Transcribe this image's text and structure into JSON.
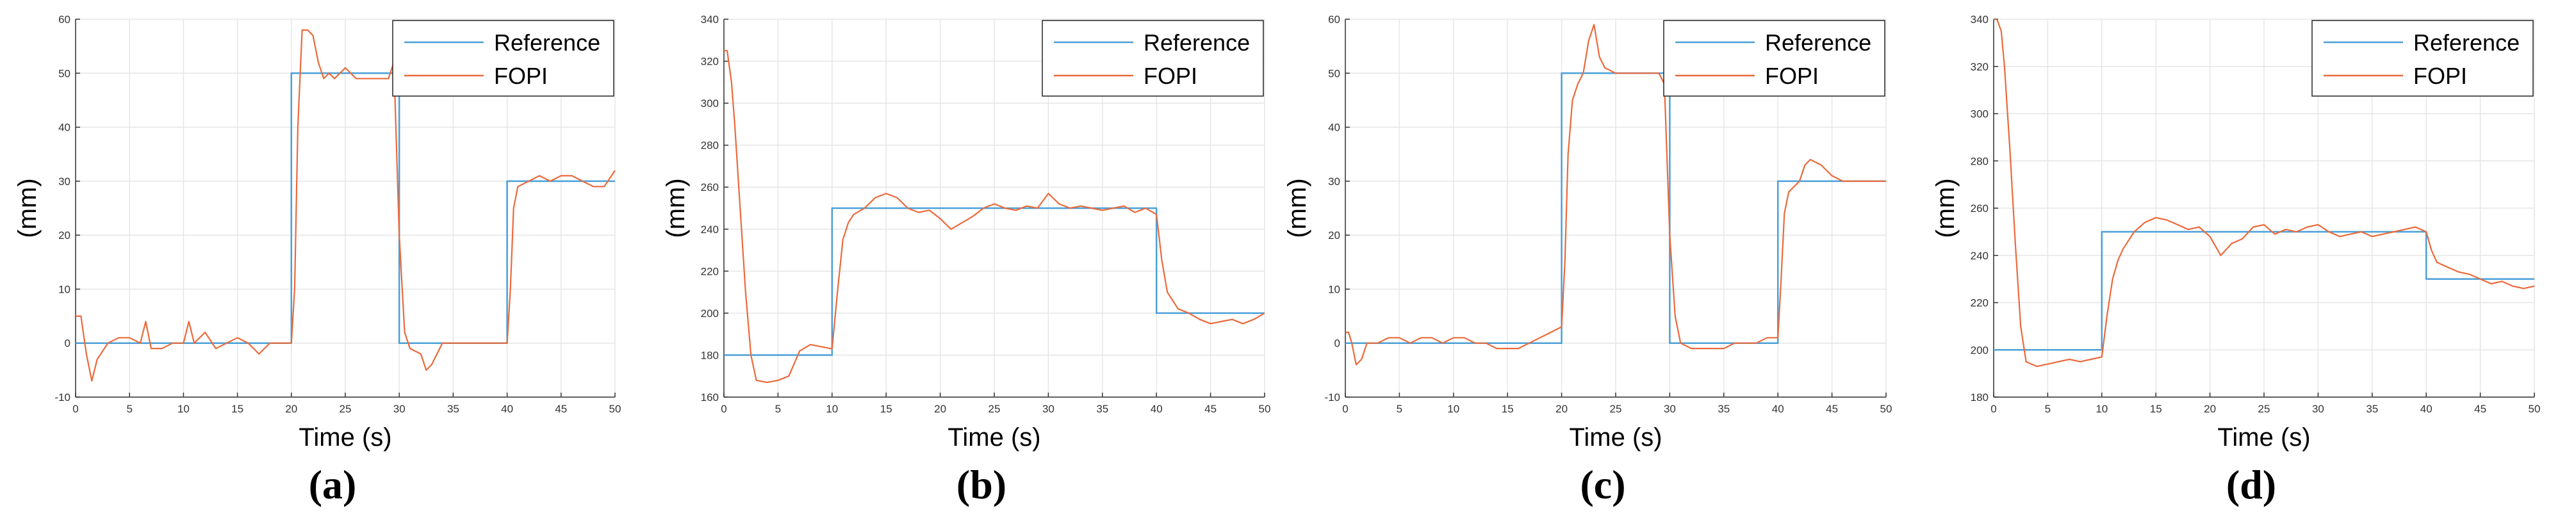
{
  "colors": {
    "reference": "#4a9fd8",
    "fopi": "#ea6a3c",
    "axis": "#333333",
    "grid": "#e6e6e6"
  },
  "chart_data": [
    {
      "type": "line",
      "panel_label": "(a)",
      "xlabel": "Time (s)",
      "ylabel": "(mm)",
      "xlim": [
        0,
        50
      ],
      "ylim": [
        -10,
        60
      ],
      "xticks": [
        "0",
        "5",
        "10",
        "15",
        "20",
        "25",
        "30",
        "35",
        "40",
        "45",
        "50"
      ],
      "yticks": [
        "-10",
        "0",
        "10",
        "20",
        "30",
        "40",
        "50",
        "60"
      ],
      "grid": true,
      "legend": "top-right",
      "series": [
        {
          "name": "Reference",
          "color": "#4a9fd8",
          "x": [
            0,
            20,
            20,
            30,
            30,
            40,
            40,
            50
          ],
          "y": [
            0,
            0,
            50,
            50,
            0,
            0,
            30,
            30
          ]
        },
        {
          "name": "FOPI",
          "color": "#ea6a3c",
          "x": [
            0,
            0.5,
            1,
            1.5,
            2,
            3,
            4,
            5,
            6,
            6.5,
            7,
            8,
            9,
            10,
            10.5,
            11,
            12,
            13,
            14,
            15,
            16,
            17,
            18,
            19,
            20,
            20.3,
            20.6,
            21,
            21.5,
            22,
            22.5,
            23,
            23.5,
            24,
            25,
            26,
            27,
            28,
            29,
            29.5,
            30,
            30.5,
            31,
            32,
            32.5,
            33,
            34,
            35,
            36,
            37,
            38,
            39,
            40,
            40.3,
            40.6,
            41,
            42,
            43,
            44,
            45,
            46,
            47,
            48,
            49,
            50
          ],
          "y": [
            5,
            5,
            -2,
            -7,
            -3,
            0,
            1,
            1,
            0,
            4,
            -1,
            -1,
            0,
            0,
            4,
            0,
            2,
            -1,
            0,
            1,
            0,
            -2,
            0,
            0,
            0,
            10,
            40,
            58,
            58,
            57,
            52,
            49,
            50,
            49,
            51,
            49,
            49,
            49,
            49,
            52,
            20,
            2,
            -1,
            -2,
            -5,
            -4,
            0,
            0,
            0,
            0,
            0,
            0,
            0,
            10,
            25,
            29,
            30,
            31,
            30,
            31,
            31,
            30,
            29,
            29,
            32
          ]
        }
      ]
    },
    {
      "type": "line",
      "panel_label": "(b)",
      "xlabel": "Time (s)",
      "ylabel": "(mm)",
      "xlim": [
        0,
        50
      ],
      "ylim": [
        160,
        340
      ],
      "xticks": [
        "0",
        "5",
        "10",
        "15",
        "20",
        "25",
        "30",
        "35",
        "40",
        "45",
        "50"
      ],
      "yticks": [
        "160",
        "180",
        "200",
        "220",
        "240",
        "260",
        "280",
        "300",
        "320",
        "340"
      ],
      "grid": true,
      "legend": "top-right",
      "series": [
        {
          "name": "Reference",
          "color": "#4a9fd8",
          "x": [
            0,
            10,
            10,
            40,
            40,
            50
          ],
          "y": [
            180,
            180,
            250,
            250,
            200,
            200
          ]
        },
        {
          "name": "FOPI",
          "color": "#ea6a3c",
          "x": [
            0,
            0.3,
            0.7,
            1,
            1.5,
            2,
            2.5,
            3,
            4,
            5,
            6,
            7,
            8,
            9,
            10,
            10.5,
            11,
            11.5,
            12,
            13,
            14,
            15,
            16,
            17,
            18,
            19,
            20,
            21,
            22,
            23,
            24,
            25,
            26,
            27,
            28,
            29,
            30,
            31,
            32,
            33,
            34,
            35,
            36,
            37,
            38,
            39,
            40,
            40.5,
            41,
            42,
            43,
            44,
            45,
            46,
            47,
            48,
            49,
            50
          ],
          "y": [
            325,
            325,
            310,
            290,
            250,
            210,
            180,
            168,
            167,
            168,
            170,
            182,
            185,
            184,
            183,
            210,
            235,
            243,
            247,
            250,
            255,
            257,
            255,
            250,
            248,
            249,
            245,
            240,
            243,
            246,
            250,
            252,
            250,
            249,
            251,
            250,
            257,
            252,
            250,
            251,
            250,
            249,
            250,
            251,
            248,
            250,
            247,
            225,
            210,
            202,
            200,
            197,
            195,
            196,
            197,
            195,
            197,
            200
          ]
        }
      ]
    },
    {
      "type": "line",
      "panel_label": "(c)",
      "xlabel": "Time (s)",
      "ylabel": "(mm)",
      "xlim": [
        0,
        50
      ],
      "ylim": [
        -10,
        60
      ],
      "xticks": [
        "0",
        "5",
        "10",
        "15",
        "20",
        "25",
        "30",
        "35",
        "40",
        "45",
        "50"
      ],
      "yticks": [
        "-10",
        "0",
        "10",
        "20",
        "30",
        "40",
        "50",
        "60"
      ],
      "grid": true,
      "legend": "top-right",
      "series": [
        {
          "name": "Reference",
          "color": "#4a9fd8",
          "x": [
            0,
            20,
            20,
            30,
            30,
            40,
            40,
            50
          ],
          "y": [
            0,
            0,
            50,
            50,
            0,
            0,
            30,
            30
          ]
        },
        {
          "name": "FOPI",
          "color": "#ea6a3c",
          "x": [
            0,
            0.3,
            0.6,
            1,
            1.5,
            2,
            3,
            4,
            5,
            6,
            7,
            8,
            9,
            10,
            11,
            12,
            13,
            14,
            15,
            16,
            17,
            18,
            19,
            20,
            20.3,
            20.6,
            21,
            21.5,
            22,
            22.5,
            23,
            23.5,
            24,
            25,
            26,
            27,
            28,
            29,
            29.5,
            30,
            30.5,
            31,
            32,
            33,
            34,
            35,
            36,
            37,
            38,
            39,
            40,
            40.3,
            40.6,
            41,
            42,
            42.5,
            43,
            44,
            45,
            46,
            47,
            48,
            49,
            50
          ],
          "y": [
            2,
            2,
            0,
            -4,
            -3,
            0,
            0,
            1,
            1,
            0,
            1,
            1,
            0,
            1,
            1,
            0,
            0,
            -1,
            -1,
            -1,
            0,
            1,
            2,
            3,
            15,
            35,
            45,
            48,
            50,
            56,
            59,
            53,
            51,
            50,
            50,
            50,
            50,
            50,
            48,
            20,
            5,
            0,
            -1,
            -1,
            -1,
            -1,
            0,
            0,
            0,
            1,
            1,
            12,
            24,
            28,
            30,
            33,
            34,
            33,
            31,
            30,
            30,
            30,
            30,
            30
          ]
        }
      ]
    },
    {
      "type": "line",
      "panel_label": "(d)",
      "xlabel": "Time (s)",
      "ylabel": "(mm)",
      "xlim": [
        0,
        50
      ],
      "ylim": [
        180,
        340
      ],
      "xticks": [
        "0",
        "5",
        "10",
        "15",
        "20",
        "25",
        "30",
        "35",
        "40",
        "45",
        "50"
      ],
      "yticks": [
        "180",
        "200",
        "220",
        "240",
        "260",
        "280",
        "300",
        "320",
        "340"
      ],
      "grid": true,
      "legend": "top-right",
      "series": [
        {
          "name": "Reference",
          "color": "#4a9fd8",
          "x": [
            0,
            10,
            10,
            40,
            40,
            50
          ],
          "y": [
            200,
            200,
            250,
            250,
            230,
            230
          ]
        },
        {
          "name": "FOPI",
          "color": "#ea6a3c",
          "x": [
            0,
            0.3,
            0.7,
            1,
            1.5,
            2,
            2.5,
            3,
            4,
            5,
            6,
            7,
            8,
            9,
            10,
            10.5,
            11,
            11.5,
            12,
            13,
            14,
            15,
            16,
            17,
            18,
            19,
            20,
            21,
            22,
            23,
            24,
            25,
            26,
            27,
            28,
            29,
            30,
            31,
            32,
            33,
            34,
            35,
            36,
            37,
            38,
            39,
            40,
            40.5,
            41,
            42,
            43,
            44,
            45,
            46,
            47,
            48,
            49,
            50
          ],
          "y": [
            340,
            340,
            335,
            320,
            285,
            245,
            210,
            195,
            193,
            194,
            195,
            196,
            195,
            196,
            197,
            215,
            230,
            238,
            243,
            250,
            254,
            256,
            255,
            253,
            251,
            252,
            248,
            240,
            245,
            247,
            252,
            253,
            249,
            251,
            250,
            252,
            253,
            250,
            248,
            249,
            250,
            248,
            249,
            250,
            251,
            252,
            250,
            242,
            237,
            235,
            233,
            232,
            230,
            228,
            229,
            227,
            226,
            227
          ]
        }
      ]
    }
  ]
}
